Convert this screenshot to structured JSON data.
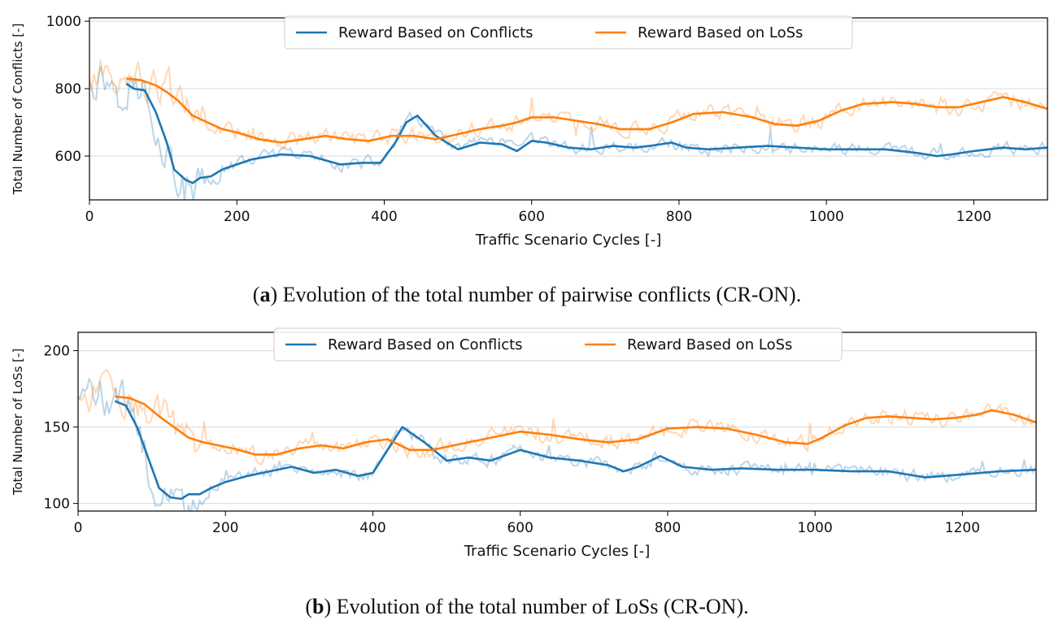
{
  "colors": {
    "conflicts": "#1f77b4",
    "loss": "#ff7f0e",
    "grid": "#d9d9d9"
  },
  "chart_data": [
    {
      "type": "line",
      "title": "",
      "xlabel": "Traffic Scenario Cycles [-]",
      "ylabel": "Total Number of Conflicts [-]",
      "xlim": [
        0,
        1300
      ],
      "ylim": [
        470,
        1010
      ],
      "xticks": [
        0,
        200,
        400,
        600,
        800,
        1000,
        1200
      ],
      "yticks": [
        600,
        800,
        1000
      ],
      "legend": [
        "Reward Based on Conflicts",
        "Reward Based on LoSs"
      ],
      "legend_position": "top-center",
      "caption_label": "a",
      "caption_text": ") Evolution of the total number of pairwise conflicts (CR-ON).",
      "series": [
        {
          "name": "Reward Based on Conflicts",
          "color": "#1f77b4",
          "x": [
            50,
            60,
            75,
            90,
            105,
            115,
            130,
            140,
            150,
            165,
            180,
            200,
            220,
            260,
            300,
            340,
            370,
            395,
            415,
            430,
            445,
            470,
            500,
            530,
            560,
            580,
            600,
            620,
            650,
            680,
            710,
            740,
            760,
            790,
            810,
            840,
            880,
            920,
            960,
            1000,
            1040,
            1080,
            1120,
            1150,
            1170,
            1200,
            1240,
            1270,
            1300
          ],
          "y": [
            815,
            800,
            795,
            730,
            640,
            560,
            530,
            520,
            535,
            540,
            560,
            575,
            590,
            605,
            600,
            575,
            580,
            580,
            640,
            700,
            720,
            660,
            620,
            640,
            635,
            615,
            645,
            640,
            625,
            620,
            630,
            625,
            630,
            640,
            625,
            620,
            625,
            630,
            625,
            620,
            620,
            620,
            610,
            600,
            605,
            615,
            625,
            620,
            625
          ]
        },
        {
          "name": "Reward Based on LoSs",
          "color": "#ff7f0e",
          "x": [
            50,
            70,
            90,
            105,
            120,
            140,
            160,
            180,
            200,
            230,
            260,
            290,
            320,
            350,
            380,
            410,
            440,
            470,
            500,
            530,
            560,
            580,
            600,
            630,
            660,
            690,
            720,
            760,
            790,
            820,
            860,
            900,
            930,
            960,
            990,
            1020,
            1050,
            1090,
            1120,
            1150,
            1180,
            1210,
            1240,
            1270,
            1300
          ],
          "y": [
            830,
            825,
            810,
            790,
            765,
            720,
            700,
            680,
            670,
            650,
            640,
            650,
            660,
            650,
            645,
            660,
            660,
            650,
            665,
            680,
            690,
            700,
            715,
            715,
            705,
            695,
            680,
            680,
            700,
            725,
            730,
            715,
            695,
            690,
            705,
            735,
            755,
            760,
            755,
            745,
            745,
            760,
            775,
            760,
            740
          ]
        }
      ]
    },
    {
      "type": "line",
      "title": "",
      "xlabel": "Traffic Scenario Cycles [-]",
      "ylabel": "Total Number of LoSs [-]",
      "xlim": [
        0,
        1300
      ],
      "ylim": [
        95,
        212
      ],
      "xticks": [
        0,
        200,
        400,
        600,
        800,
        1000,
        1200
      ],
      "yticks": [
        100,
        150,
        200
      ],
      "legend": [
        "Reward Based on Conflicts",
        "Reward Based on LoSs"
      ],
      "legend_position": "top-center",
      "caption_label": "b",
      "caption_text": ") Evolution of the total number of LoSs (CR-ON).",
      "series": [
        {
          "name": "Reward Based on Conflicts",
          "color": "#1f77b4",
          "x": [
            50,
            65,
            80,
            95,
            110,
            125,
            140,
            150,
            165,
            180,
            200,
            230,
            260,
            290,
            320,
            350,
            380,
            400,
            420,
            440,
            470,
            500,
            530,
            560,
            600,
            640,
            680,
            720,
            740,
            760,
            790,
            820,
            860,
            900,
            950,
            1000,
            1050,
            1100,
            1150,
            1200,
            1250,
            1300
          ],
          "y": [
            167,
            164,
            150,
            130,
            110,
            104,
            103,
            106,
            106,
            110,
            114,
            118,
            121,
            124,
            120,
            122,
            118,
            120,
            135,
            150,
            140,
            128,
            130,
            128,
            135,
            130,
            128,
            125,
            121,
            124,
            131,
            124,
            122,
            123,
            122,
            122,
            121,
            121,
            117,
            119,
            121,
            122
          ]
        },
        {
          "name": "Reward Based on LoSs",
          "color": "#ff7f0e",
          "x": [
            50,
            70,
            90,
            110,
            130,
            150,
            170,
            190,
            210,
            240,
            270,
            300,
            330,
            360,
            390,
            420,
            450,
            480,
            510,
            540,
            570,
            600,
            640,
            680,
            720,
            760,
            800,
            840,
            880,
            920,
            960,
            990,
            1010,
            1040,
            1070,
            1100,
            1130,
            1160,
            1190,
            1220,
            1240,
            1270,
            1300
          ],
          "y": [
            170,
            169,
            165,
            157,
            150,
            143,
            140,
            138,
            136,
            132,
            132,
            136,
            138,
            136,
            140,
            142,
            135,
            135,
            138,
            141,
            144,
            147,
            145,
            142,
            140,
            142,
            149,
            150,
            149,
            145,
            140,
            139,
            143,
            151,
            156,
            157,
            156,
            155,
            156,
            158,
            161,
            158,
            153
          ]
        }
      ]
    }
  ]
}
